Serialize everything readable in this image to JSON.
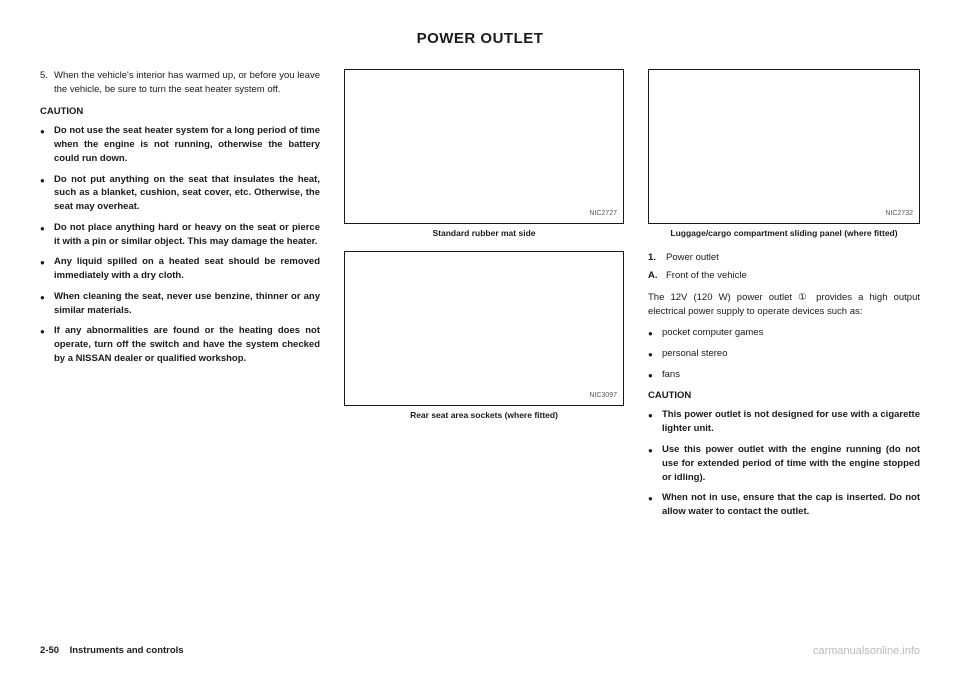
{
  "title": "POWER OUTLET",
  "col1": {
    "step5_num": "5.",
    "step5": "When the vehicle's interior has warmed up, or before you leave the vehicle, be sure to turn the seat heater system off.",
    "caution": "CAUTION",
    "bullets": [
      "Do not use the seat heater system for a long period of time when the engine is not running, otherwise the battery could run down.",
      "Do not put anything on the seat that insulates the heat, such as a blanket, cushion, seat cover, etc. Otherwise, the seat may overheat.",
      "Do not place anything hard or heavy on the seat or pierce it with a pin or similar object. This may damage the heater.",
      "Any liquid spilled on a heated seat should be removed immediately with a dry cloth.",
      "When cleaning the seat, never use benzine, thinner or any similar materials.",
      "If any abnormalities are found or the heating does not operate, turn off the switch and have the system checked by a NISSAN dealer or qualified workshop."
    ]
  },
  "col2": {
    "fig1_code": "NIC2727",
    "fig1_cap": "Standard rubber mat side",
    "fig2_code": "NIC3097",
    "fig2_cap": "Rear seat area sockets (where fitted)"
  },
  "col3": {
    "fig3_code": "NIC2732",
    "fig3_cap": "Luggage/cargo compartment sliding panel (where fitted)",
    "item1_marker": "1.",
    "item1": "Power outlet",
    "itemA_marker": "A.",
    "itemA": "Front of the vehicle",
    "body": "The 12V (120 W) power outlet ① provides a high output electrical power supply to operate devices such as:",
    "uses": [
      "pocket computer games",
      "personal stereo",
      "fans"
    ],
    "caution": "CAUTION",
    "cautions": [
      "This power outlet is not designed for use with a cigarette lighter unit.",
      "Use this power outlet with the engine running (do not use for extended period of time with the engine stopped or idling).",
      "When not in use, ensure that the cap is inserted. Do not allow water to contact the outlet."
    ]
  },
  "footer": {
    "left_page": "2-50",
    "left_section": "Instruments and controls",
    "right": "carmanualsonline.info"
  },
  "colors": {
    "text": "#1a1a1a",
    "muted": "#bbbbbb",
    "figcode": "#555555",
    "bg": "#ffffff"
  }
}
